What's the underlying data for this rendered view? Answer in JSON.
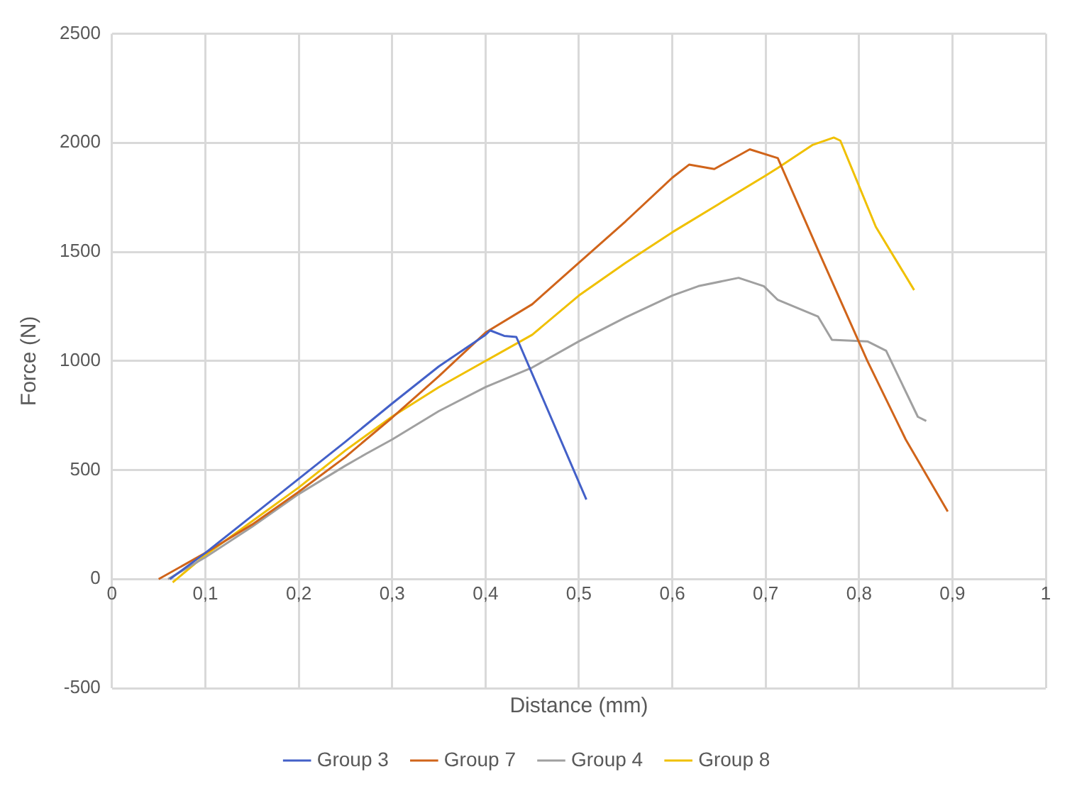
{
  "chart_data": {
    "type": "line",
    "xlabel": "Distance (mm)",
    "ylabel": "Force (N)",
    "xlim": [
      0,
      1
    ],
    "xticks": [
      0,
      {
        "value": 0.1,
        "label": "0,1"
      },
      {
        "value": 0.2,
        "label": "0,2"
      },
      {
        "value": 0.3,
        "label": "0,3"
      },
      {
        "value": 0.4,
        "label": "0,4"
      },
      {
        "value": 0.5,
        "label": "0,5"
      },
      {
        "value": 0.6,
        "label": "0,6"
      },
      {
        "value": 0.7,
        "label": "0,7"
      },
      {
        "value": 0.8,
        "label": "0,8"
      },
      {
        "value": 0.9,
        "label": "0,9"
      },
      1
    ],
    "ylim": [
      -500,
      2500
    ],
    "yticks": [
      -500,
      0,
      500,
      1000,
      1500,
      2000,
      2500
    ],
    "grid": true,
    "legend": "bottom",
    "marker": "none",
    "line_style": "solid",
    "series": [
      {
        "name": "Group 3",
        "color": "#4360c8",
        "x": [
          0.062,
          0.1,
          0.15,
          0.2,
          0.25,
          0.3,
          0.35,
          0.4,
          0.405,
          0.42,
          0.433,
          0.508
        ],
        "values": [
          0,
          120,
          290,
          460,
          630,
          805,
          975,
          1120,
          1140,
          1115,
          1110,
          365
        ]
      },
      {
        "name": "Group 7",
        "color": "#d0641a",
        "x": [
          0.05,
          0.1,
          0.15,
          0.2,
          0.25,
          0.3,
          0.35,
          0.4,
          0.45,
          0.5,
          0.55,
          0.6,
          0.618,
          0.645,
          0.683,
          0.713,
          0.758,
          0.809,
          0.85,
          0.895
        ],
        "values": [
          0,
          120,
          250,
          400,
          560,
          740,
          930,
          1130,
          1260,
          1450,
          1640,
          1840,
          1900,
          1880,
          1970,
          1930,
          1490,
          1000,
          640,
          310
        ]
      },
      {
        "name": "Group 4",
        "color": "#a0a0a0",
        "x": [
          0.06,
          0.1,
          0.15,
          0.2,
          0.25,
          0.272,
          0.3,
          0.35,
          0.4,
          0.45,
          0.5,
          0.55,
          0.6,
          0.628,
          0.671,
          0.698,
          0.713,
          0.756,
          0.771,
          0.809,
          0.829,
          0.863,
          0.872
        ],
        "values": [
          0,
          100,
          240,
          390,
          520,
          574,
          640,
          770,
          880,
          970,
          1090,
          1200,
          1300,
          1343,
          1381,
          1343,
          1280,
          1204,
          1097,
          1090,
          1047,
          744,
          725
        ]
      },
      {
        "name": "Group 8",
        "color": "#f0c000",
        "x": [
          0.065,
          0.1,
          0.15,
          0.2,
          0.25,
          0.3,
          0.35,
          0.4,
          0.45,
          0.5,
          0.55,
          0.6,
          0.65,
          0.7,
          0.713,
          0.75,
          0.773,
          0.78,
          0.818,
          0.859
        ],
        "values": [
          -15,
          110,
          265,
          420,
          590,
          745,
          880,
          1000,
          1120,
          1300,
          1450,
          1590,
          1720,
          1850,
          1885,
          1990,
          2024,
          2010,
          1615,
          1325
        ]
      }
    ]
  }
}
